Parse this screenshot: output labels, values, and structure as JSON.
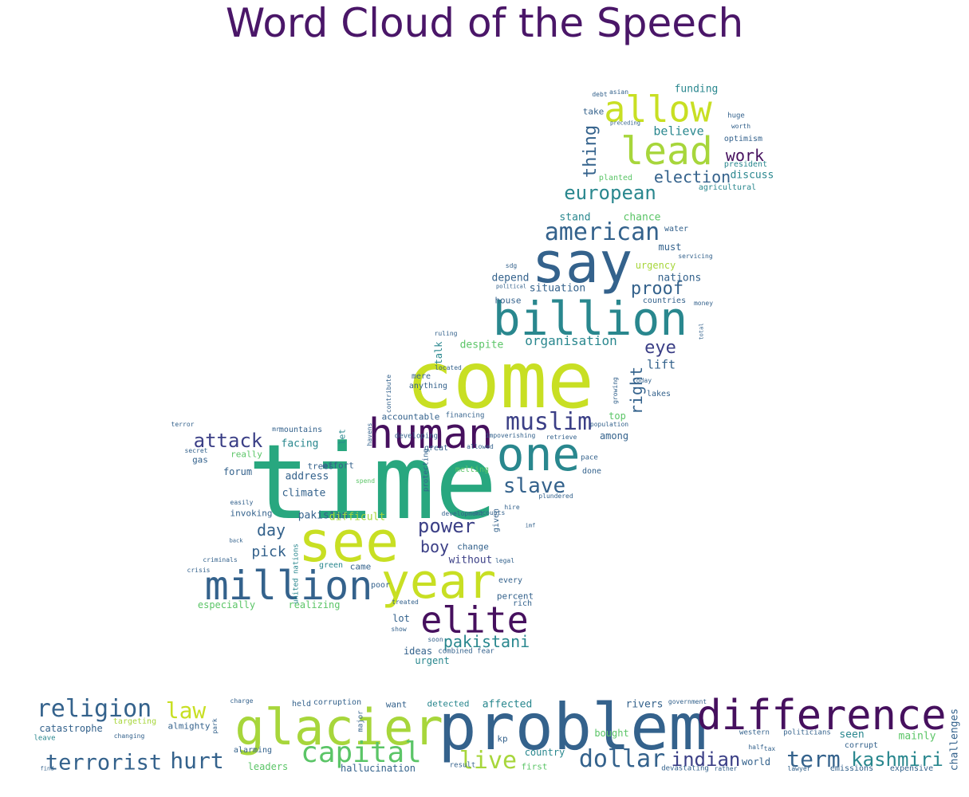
{
  "title": "Word Cloud of the Speech",
  "words": [
    "time",
    "come",
    "see",
    "glacier",
    "problem",
    "say",
    "billion",
    "year",
    "human",
    "one",
    "million",
    "elite",
    "difference",
    "allow",
    "lead",
    "american",
    "muslim",
    "capital",
    "religion",
    "terrorist",
    "european",
    "attack",
    "slave",
    "power",
    "dollar",
    "indian",
    "kashmiri",
    "term",
    "hurt",
    "law",
    "live",
    "pakistani",
    "boy",
    "day",
    "pick",
    "work",
    "election",
    "thing",
    "proof",
    "eye",
    "right",
    "organisation",
    "believe",
    "funding",
    "discuss",
    "agricultural",
    "chance",
    "stand",
    "must",
    "nations",
    "situation",
    "depend",
    "house",
    "countries",
    "despite",
    "lift",
    "lakes",
    "accountable",
    "anything",
    "mere",
    "talk",
    "facing",
    "address",
    "climate",
    "forum",
    "invoking",
    "really",
    "pakistan",
    "difficult",
    "change",
    "without",
    "came",
    "especially",
    "realizing",
    "percent",
    "rich",
    "lot",
    "ideas",
    "urgent",
    "affected",
    "country",
    "leaders",
    "hallucination",
    "detected",
    "want",
    "rivers",
    "held",
    "corruption",
    "catastrophe",
    "almighty",
    "mainly",
    "seen",
    "corrupt",
    "challenges",
    "world",
    "first",
    "expensive",
    "emissions",
    "among",
    "top",
    "done",
    "water",
    "president",
    "optimism",
    "huge",
    "worth",
    "take",
    "asian",
    "debt",
    "urgency",
    "planted",
    "servicing",
    "money",
    "sdg",
    "today",
    "growing",
    "given",
    "trees",
    "effort",
    "mountains",
    "gas",
    "secret",
    "terror",
    "easily",
    "crisis",
    "green",
    "poor",
    "every",
    "legal",
    "combined",
    "fear",
    "soon",
    "treated",
    "show",
    "tax",
    "western",
    "politicians",
    "devastating",
    "rather",
    "lawyer",
    "half",
    "government",
    "bought",
    "alarming",
    "major",
    "park",
    "charge",
    "leave",
    "find",
    "changing",
    "targeting",
    "contribute",
    "financing",
    "ruling",
    "located",
    "population",
    "great",
    "allowed",
    "impoverishing",
    "retrieve",
    "havens",
    "developing",
    "pace",
    "protecting",
    "spend",
    "melting",
    "plundered",
    "development",
    "accounts",
    "result",
    "kp",
    "united nations",
    "mr",
    "criminals",
    "let",
    "back",
    "political",
    "hire",
    "imf",
    "total",
    "preceding"
  ],
  "colors": {
    "dark_purple": "#46105e",
    "indigo": "#3b3f86",
    "blue": "#34628c",
    "teal": "#29878e",
    "green": "#28a77f",
    "light_green": "#5bc567",
    "lime": "#a7d63b",
    "yellow": "#c8df23"
  }
}
